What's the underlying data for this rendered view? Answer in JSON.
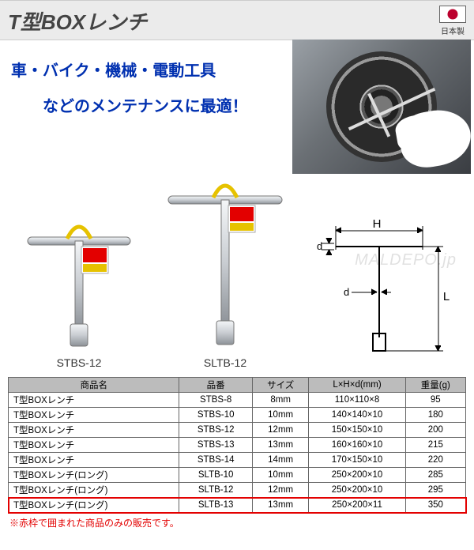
{
  "header": {
    "title": "T型BOXレンチ",
    "flag_label": "日本製"
  },
  "subtitle": {
    "line1": "車・バイク・機械・電動工具",
    "line2": "などのメンテナンスに最適！"
  },
  "watermark": "MALDEPO.jp",
  "tools": {
    "short_label": "STBS-12",
    "long_label": "SLTB-12"
  },
  "diagram": {
    "H": "H",
    "L": "L",
    "d": "d"
  },
  "table": {
    "headers": [
      "商品名",
      "品番",
      "サイズ",
      "L×H×d(mm)",
      "重量(g)"
    ],
    "rows": [
      {
        "name": "T型BOXレンチ",
        "code": "STBS-8",
        "size": "8mm",
        "dims": "110×110×8",
        "weight": "95",
        "hl": false
      },
      {
        "name": "T型BOXレンチ",
        "code": "STBS-10",
        "size": "10mm",
        "dims": "140×140×10",
        "weight": "180",
        "hl": false
      },
      {
        "name": "T型BOXレンチ",
        "code": "STBS-12",
        "size": "12mm",
        "dims": "150×150×10",
        "weight": "200",
        "hl": false
      },
      {
        "name": "T型BOXレンチ",
        "code": "STBS-13",
        "size": "13mm",
        "dims": "160×160×10",
        "weight": "215",
        "hl": false
      },
      {
        "name": "T型BOXレンチ",
        "code": "STBS-14",
        "size": "14mm",
        "dims": "170×150×10",
        "weight": "220",
        "hl": false
      },
      {
        "name": "T型BOXレンチ(ロング)",
        "code": "SLTB-10",
        "size": "10mm",
        "dims": "250×200×10",
        "weight": "285",
        "hl": false
      },
      {
        "name": "T型BOXレンチ(ロング)",
        "code": "SLTB-12",
        "size": "12mm",
        "dims": "250×200×10",
        "weight": "295",
        "hl": false
      },
      {
        "name": "T型BOXレンチ(ロング)",
        "code": "SLTB-13",
        "size": "13mm",
        "dims": "250×200×11",
        "weight": "350",
        "hl": true
      }
    ]
  },
  "note": "※赤枠で囲まれた商品のみの販売です。",
  "colors": {
    "title_bg": "#ebebeb",
    "subtitle_text": "#0030b0",
    "table_header_bg": "#bcbcbc",
    "highlight_border": "#e30000",
    "metal": "#c9cdd2"
  }
}
